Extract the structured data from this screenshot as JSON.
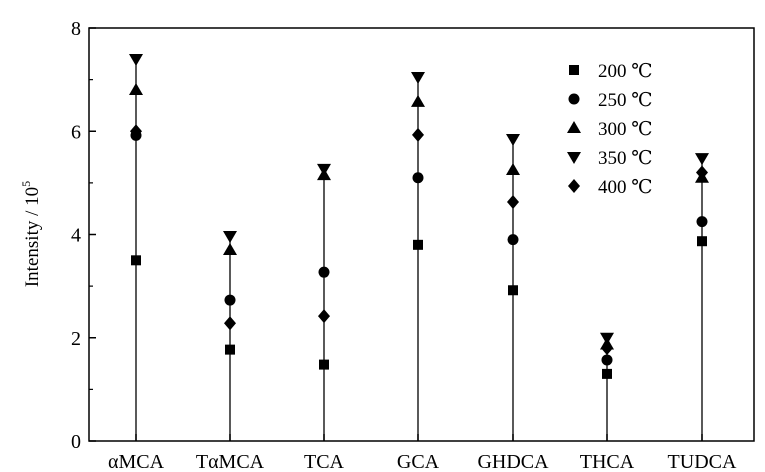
{
  "chart_data": {
    "type": "scatter",
    "title": "",
    "xlabel": "",
    "ylabel": "Intensity / 10",
    "ylabel_exponent": "5",
    "ylim": [
      0,
      8
    ],
    "yticks": [
      "0",
      "2",
      "4",
      "6",
      "8"
    ],
    "categories": [
      "αMCA",
      "TαMCA",
      "TCA",
      "GCA",
      "GHDCA",
      "THCA",
      "TUDCA"
    ],
    "legend_position": "top-right",
    "grid": false,
    "series": [
      {
        "name": "200 ℃",
        "marker": "square",
        "values": [
          3.5,
          1.77,
          1.48,
          3.8,
          2.92,
          1.3,
          3.87
        ]
      },
      {
        "name": "250 ℃",
        "marker": "circle",
        "values": [
          5.92,
          2.73,
          3.27,
          5.1,
          3.9,
          1.57,
          4.25
        ]
      },
      {
        "name": "300 ℃",
        "marker": "triangle-up",
        "values": [
          6.8,
          3.7,
          5.15,
          6.57,
          5.25,
          1.87,
          5.1
        ]
      },
      {
        "name": "350 ℃",
        "marker": "triangle-down",
        "values": [
          7.4,
          3.97,
          5.27,
          7.05,
          5.85,
          2.0,
          5.48
        ]
      },
      {
        "name": "400 ℃",
        "marker": "diamond",
        "values": [
          6.0,
          2.28,
          2.42,
          5.93,
          4.63,
          1.8,
          5.2
        ]
      }
    ]
  }
}
